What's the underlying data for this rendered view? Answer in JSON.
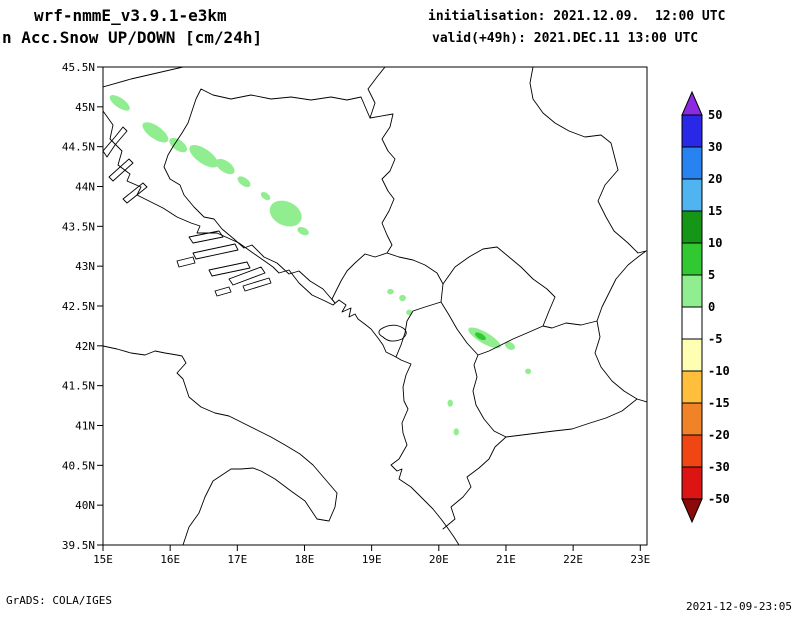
{
  "header": {
    "model_title": "wrf-nmmE_v3.9.1-e3km",
    "variable_title": "n Acc.Snow UP/DOWN [cm/24h]",
    "init_line": "initialisation: 2021.12.09.  12:00 UTC",
    "valid_line": "valid(+49h): 2021.DEC.11 13:00 UTC"
  },
  "footer": {
    "credit": "GrADS: COLA/IGES",
    "timestamp": "2021-12-09-23:05"
  },
  "chart_data": {
    "type": "heatmap",
    "title": "Acc.Snow UP/DOWN [cm/24h]",
    "projection": "lat-lon map of the Balkans / Adriatic",
    "x_axis": {
      "label": "longitude",
      "ticks": [
        "15E",
        "16E",
        "17E",
        "18E",
        "19E",
        "20E",
        "21E",
        "22E",
        "23E"
      ],
      "range": [
        15,
        23.1
      ]
    },
    "y_axis": {
      "label": "latitude",
      "ticks": [
        "45.5N",
        "45N",
        "44.5N",
        "44N",
        "43.5N",
        "43N",
        "42.5N",
        "42N",
        "41.5N",
        "41N",
        "40.5N",
        "40N",
        "39.5N"
      ],
      "range": [
        39.5,
        45.5
      ]
    },
    "grid": "off",
    "legend_position": "right",
    "colorbar": {
      "units": "cm/24h",
      "levels": [
        50,
        30,
        20,
        15,
        10,
        5,
        0,
        -5,
        -10,
        -15,
        -20,
        -30,
        -50
      ],
      "colors_top_to_bottom": [
        "#8a2be2",
        "#2828e6",
        "#2882f0",
        "#50b4f0",
        "#169616",
        "#32c832",
        "#90ee90",
        "#ffffff",
        "#ffffb4",
        "#ffbe3c",
        "#f08228",
        "#f04614",
        "#dc1414",
        "#8c0a0a"
      ]
    },
    "snow_patches": [
      {
        "lon": 15.25,
        "lat": 45.05,
        "w": 0.35,
        "h": 0.12,
        "rot": 35,
        "level": "0-5"
      },
      {
        "lon": 15.78,
        "lat": 44.68,
        "w": 0.45,
        "h": 0.16,
        "rot": 35,
        "level": "0-5"
      },
      {
        "lon": 16.12,
        "lat": 44.52,
        "w": 0.3,
        "h": 0.13,
        "rot": 35,
        "level": "0-5"
      },
      {
        "lon": 16.5,
        "lat": 44.38,
        "w": 0.5,
        "h": 0.18,
        "rot": 35,
        "level": "0-5"
      },
      {
        "lon": 16.82,
        "lat": 44.25,
        "w": 0.32,
        "h": 0.14,
        "rot": 35,
        "level": "0-5"
      },
      {
        "lon": 17.1,
        "lat": 44.06,
        "w": 0.22,
        "h": 0.1,
        "rot": 35,
        "level": "0-5"
      },
      {
        "lon": 17.42,
        "lat": 43.88,
        "w": 0.16,
        "h": 0.08,
        "rot": 35,
        "level": "0-5"
      },
      {
        "lon": 17.72,
        "lat": 43.66,
        "w": 0.5,
        "h": 0.3,
        "rot": 25,
        "level": "0-5"
      },
      {
        "lon": 17.98,
        "lat": 43.44,
        "w": 0.18,
        "h": 0.09,
        "rot": 25,
        "level": "0-5"
      },
      {
        "lon": 19.28,
        "lat": 42.68,
        "w": 0.1,
        "h": 0.07,
        "rot": 0,
        "level": "0-5"
      },
      {
        "lon": 19.46,
        "lat": 42.6,
        "w": 0.1,
        "h": 0.08,
        "rot": 0,
        "level": "0-5"
      },
      {
        "lon": 19.56,
        "lat": 42.42,
        "w": 0.09,
        "h": 0.07,
        "rot": 0,
        "level": "0-5"
      },
      {
        "lon": 20.68,
        "lat": 42.1,
        "w": 0.55,
        "h": 0.14,
        "rot": 30,
        "level": "0-5"
      },
      {
        "lon": 20.62,
        "lat": 42.12,
        "w": 0.18,
        "h": 0.07,
        "rot": 30,
        "level": "5-10"
      },
      {
        "lon": 21.06,
        "lat": 42.0,
        "w": 0.16,
        "h": 0.09,
        "rot": 30,
        "level": "0-5"
      },
      {
        "lon": 21.33,
        "lat": 41.68,
        "w": 0.09,
        "h": 0.07,
        "rot": 0,
        "level": "0-5"
      },
      {
        "lon": 20.17,
        "lat": 41.28,
        "w": 0.08,
        "h": 0.09,
        "rot": 0,
        "level": "0-5"
      },
      {
        "lon": 20.26,
        "lat": 40.92,
        "w": 0.08,
        "h": 0.09,
        "rot": 0,
        "level": "0-5"
      }
    ]
  }
}
